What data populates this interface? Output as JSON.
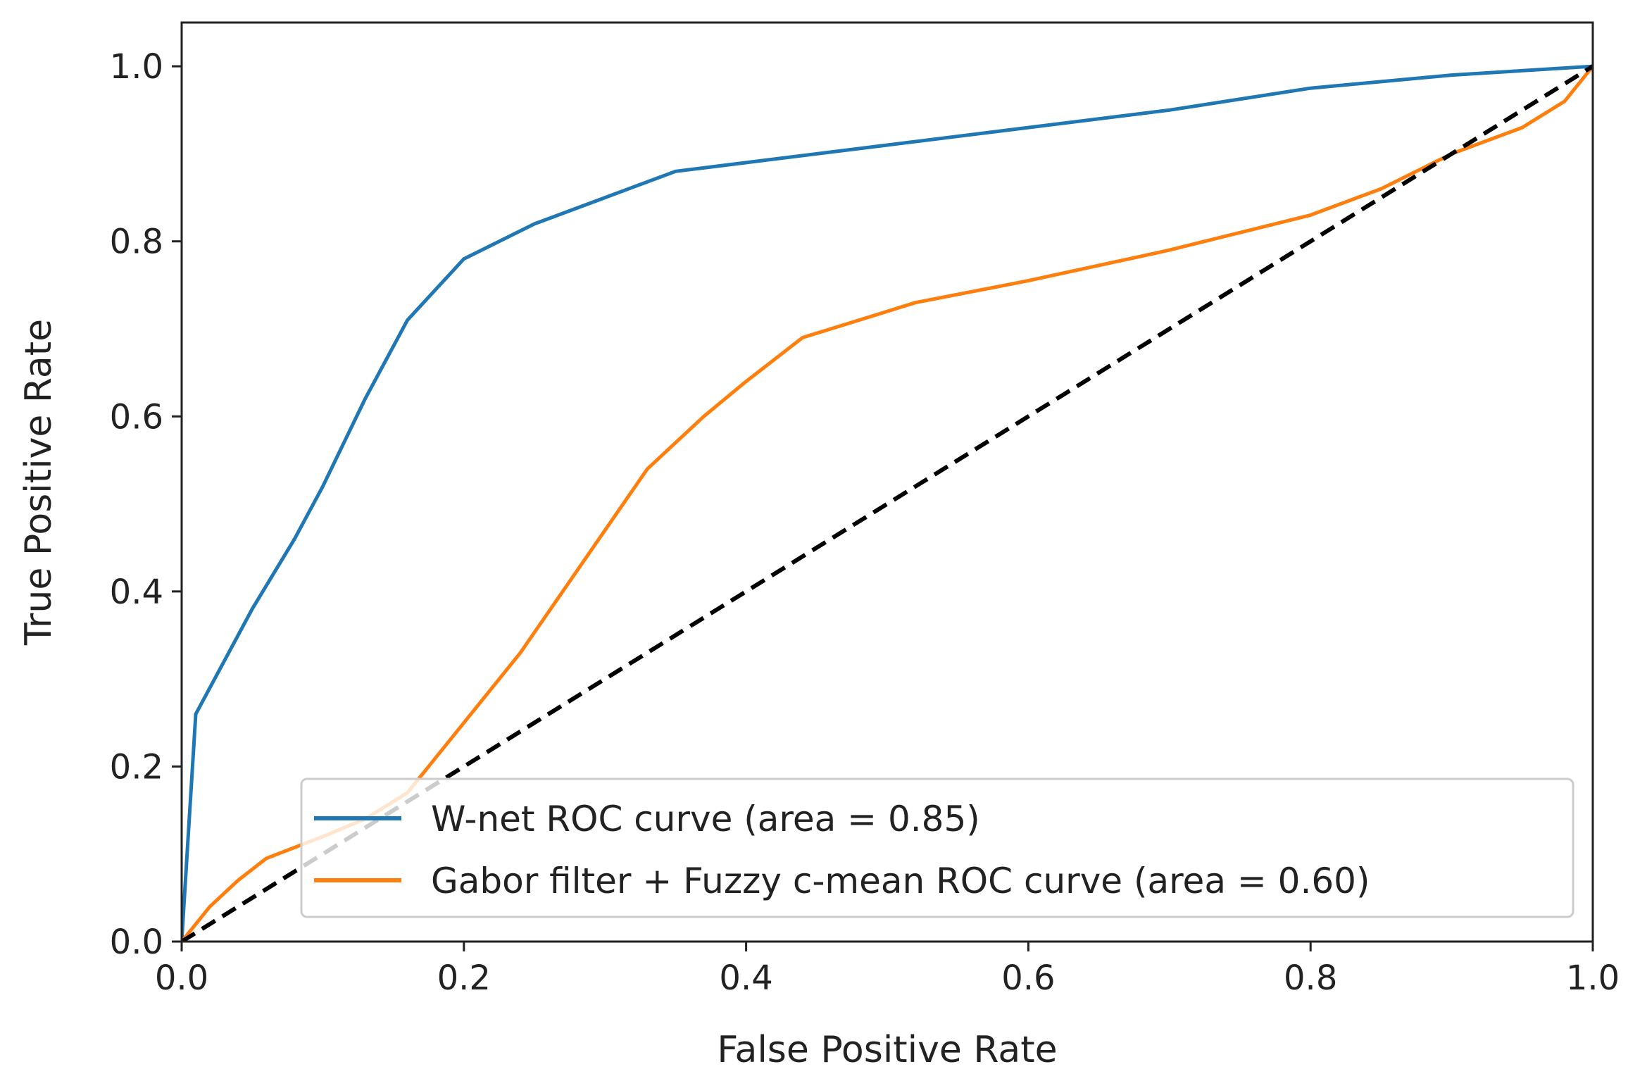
{
  "chart_data": {
    "type": "line",
    "title": "",
    "xlabel": "False Positive Rate",
    "ylabel": "True Positive Rate",
    "xlim": [
      0.0,
      1.0
    ],
    "ylim": [
      0.0,
      1.05
    ],
    "x_ticks": [
      "0.0",
      "0.2",
      "0.4",
      "0.6",
      "0.8",
      "1.0"
    ],
    "y_ticks": [
      "0.0",
      "0.2",
      "0.4",
      "0.6",
      "0.8",
      "1.0"
    ],
    "grid": false,
    "legend_position": "lower-right",
    "series": [
      {
        "name": "W-net ROC curve (area = 0.85)",
        "color": "#1f77b4",
        "style": "solid",
        "points": [
          [
            0.0,
            0.0
          ],
          [
            0.01,
            0.26
          ],
          [
            0.02,
            0.29
          ],
          [
            0.05,
            0.38
          ],
          [
            0.08,
            0.46
          ],
          [
            0.1,
            0.52
          ],
          [
            0.13,
            0.62
          ],
          [
            0.16,
            0.71
          ],
          [
            0.2,
            0.78
          ],
          [
            0.25,
            0.82
          ],
          [
            0.3,
            0.85
          ],
          [
            0.35,
            0.88
          ],
          [
            0.4,
            0.89
          ],
          [
            0.5,
            0.91
          ],
          [
            0.6,
            0.93
          ],
          [
            0.7,
            0.95
          ],
          [
            0.8,
            0.975
          ],
          [
            0.9,
            0.99
          ],
          [
            1.0,
            1.0
          ]
        ]
      },
      {
        "name": "Gabor filter + Fuzzy c-mean ROC curve (area = 0.60)",
        "color": "#ff7f0e",
        "style": "solid",
        "points": [
          [
            0.0,
            0.0
          ],
          [
            0.02,
            0.04
          ],
          [
            0.04,
            0.07
          ],
          [
            0.06,
            0.095
          ],
          [
            0.1,
            0.12
          ],
          [
            0.13,
            0.14
          ],
          [
            0.16,
            0.17
          ],
          [
            0.2,
            0.25
          ],
          [
            0.24,
            0.33
          ],
          [
            0.27,
            0.4
          ],
          [
            0.3,
            0.47
          ],
          [
            0.33,
            0.54
          ],
          [
            0.37,
            0.6
          ],
          [
            0.4,
            0.64
          ],
          [
            0.44,
            0.69
          ],
          [
            0.48,
            0.71
          ],
          [
            0.52,
            0.73
          ],
          [
            0.6,
            0.755
          ],
          [
            0.7,
            0.79
          ],
          [
            0.8,
            0.83
          ],
          [
            0.85,
            0.86
          ],
          [
            0.9,
            0.9
          ],
          [
            0.95,
            0.93
          ],
          [
            0.98,
            0.96
          ],
          [
            1.0,
            1.0
          ]
        ]
      },
      {
        "name": "",
        "color": "#000000",
        "style": "dashed",
        "points": [
          [
            0.0,
            0.0
          ],
          [
            1.0,
            1.0
          ]
        ]
      }
    ]
  }
}
